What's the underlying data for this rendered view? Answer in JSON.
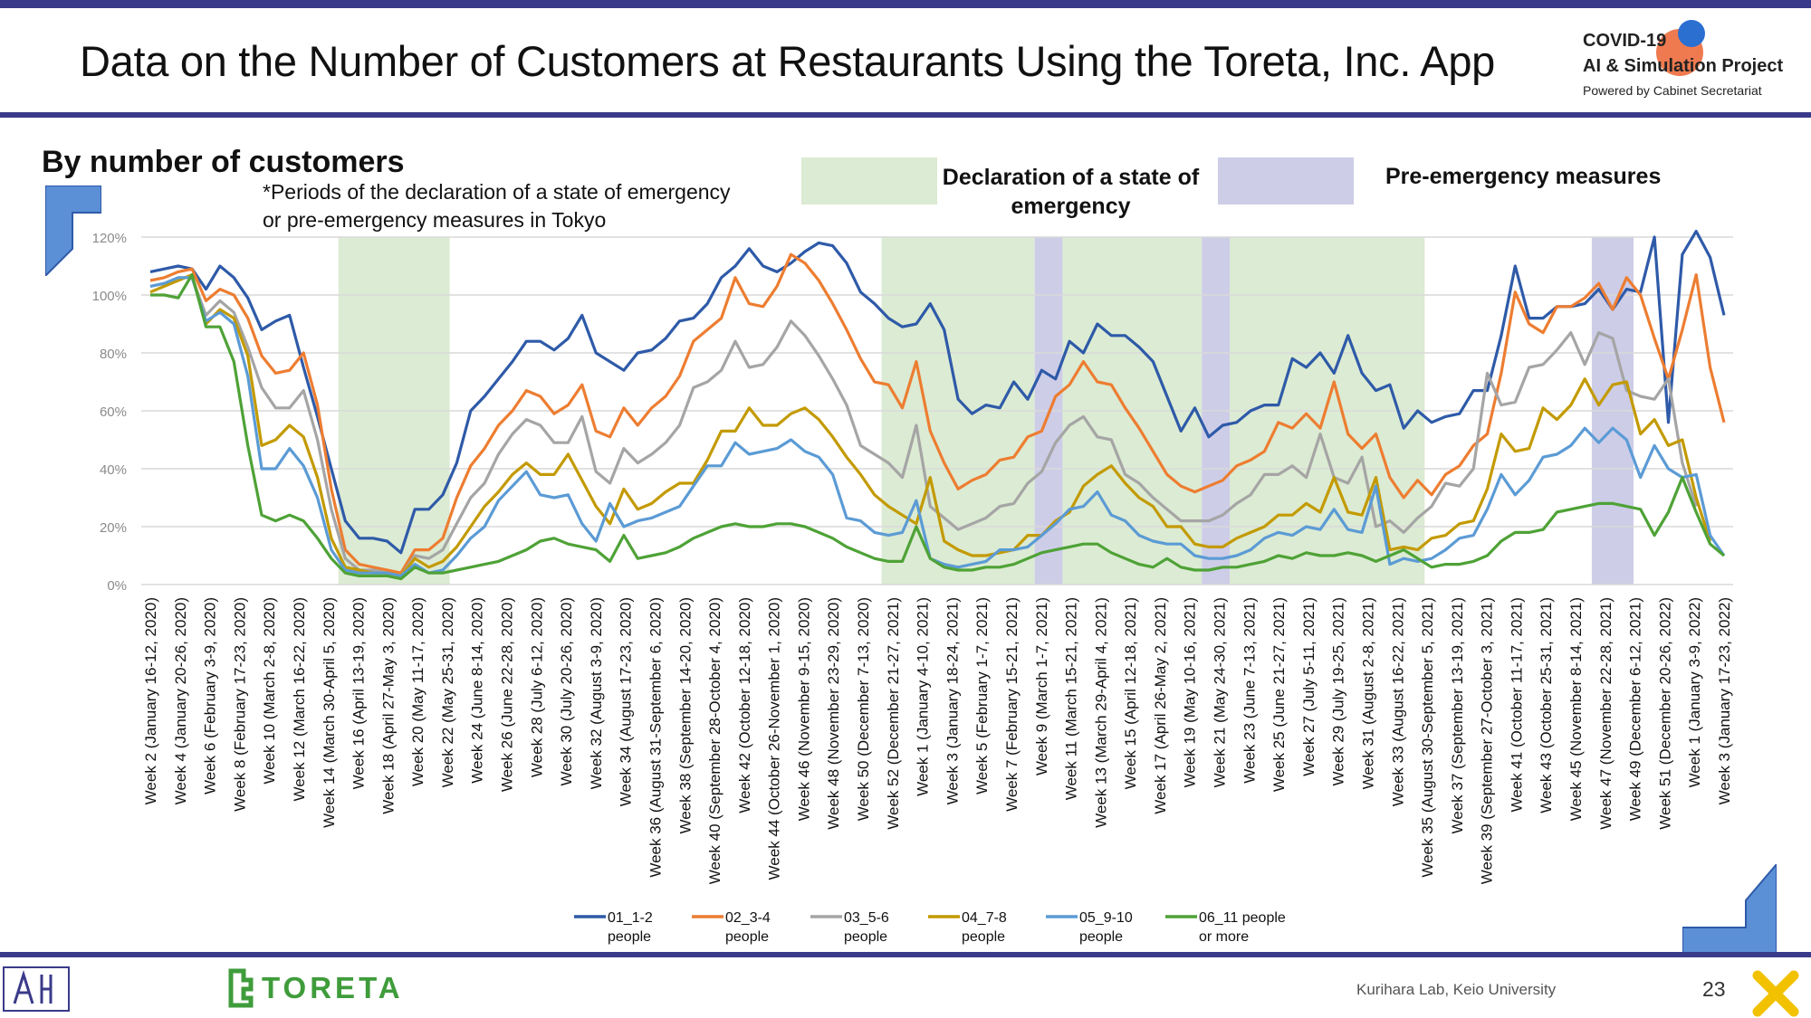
{
  "header": {
    "title": "Data on the Number of Customers at Restaurants Using the Toreta, Inc. App",
    "logo_line1": "COVID-19",
    "logo_line2": "AI & Simulation Project",
    "logo_line3": "Powered by Cabinet Secretariat"
  },
  "subtitle": "By number of customers",
  "note_line1": "*Periods of the declaration of a state of emergency",
  "note_line2": "or pre-emergency measures in Tokyo",
  "legend_top": {
    "emergency_label": "Declaration of a state of emergency",
    "pre_emergency_label": "Pre-emergency measures"
  },
  "footer": {
    "company_logo_text": "TORETA",
    "lab": "Kurihara Lab, Keio University",
    "page_number": "23"
  },
  "colors": {
    "frame": "#3a3a8a",
    "emergency_band": "#dcebd3",
    "pre_emergency_band": "#cdcde8",
    "series": [
      "#2e5aa8",
      "#ed7d31",
      "#a5a5a5",
      "#c39a00",
      "#5b9bd5",
      "#4ea236"
    ]
  },
  "chart_data": {
    "type": "line",
    "ylim": [
      0,
      120
    ],
    "y_unit": "%",
    "y_ticks": [
      "0%",
      "20%",
      "40%",
      "60%",
      "80%",
      "100%",
      "120%"
    ],
    "grid": "horizontal",
    "legend_position": "bottom",
    "x_labels": [
      "Week 2 (January 16-12, 2020)",
      "Week 4 (January 20-26, 2020)",
      "Week 6 (February 3-9, 2020)",
      "Week 8 (February 17-23, 2020)",
      "Week 10 (March 2-8, 2020)",
      "Week 12 (March 16-22, 2020)",
      "Week 14 (March 30-April 5, 2020)",
      "Week 16 (April 13-19, 2020)",
      "Week 18 (April 27-May 3, 2020)",
      "Week 20 (May 11-17, 2020)",
      "Week 22 (May 25-31, 2020)",
      "Week 24 (June 8-14, 2020)",
      "Week 26 (June 22-28, 2020)",
      "Week 28 (July 6-12, 2020)",
      "Week 30 (July 20-26, 2020)",
      "Week 32 (August 3-9, 2020)",
      "Week 34 (August 17-23, 2020)",
      "Week 36 (August 31-September 6, 2020)",
      "Week 38 (September 14-20, 2020)",
      "Week 40 (September 28-October 4, 2020)",
      "Week 42 (October 12-18, 2020)",
      "Week 44 (October 26-November 1, 2020)",
      "Week 46 (November 9-15, 2020)",
      "Week 48 (November 23-29, 2020)",
      "Week 50 (December 7-13, 2020)",
      "Week 52 (December 21-27, 2021)",
      "Week 1 (January 4-10, 2021)",
      "Week 3 (January 18-24, 2021)",
      "Week 5 (February 1-7, 2021)",
      "Week 7 (February 15-21, 2021)",
      "Week 9 (March 1-7, 2021)",
      "Week 11 (March 15-21, 2021)",
      "Week 13 (March 29-April 4, 2021)",
      "Week 15 (April 12-18, 2021)",
      "Week 17 (April 26-May 2, 2021)",
      "Week 19 (May 10-16, 2021)",
      "Week 21 (May 24-30, 2021)",
      "Week 23 (June 7-13, 2021)",
      "Week 25 (June 21-27, 2021)",
      "Week 27 (July 5-11, 2021)",
      "Week 29 (July 19-25, 2021)",
      "Week 31 (August 2-8, 2021)",
      "Week 33 (August 16-22, 2021)",
      "Week 35 (August 30-September 5, 2021)",
      "Week 37 (September 13-19, 2021)",
      "Week 39 (September 27-October 3, 2021)",
      "Week 41 (October 11-17, 2021)",
      "Week 43 (October 25-31, 2021)",
      "Week 45 (November 8-14, 2021)",
      "Week 47 (November 22-28, 2021)",
      "Week 49 (December 6-12, 2021)",
      "Week 51 (December 20-26, 2022)",
      "Week 1 (January 3-9, 2022)",
      "Week 3 (January 17-23, 2022)"
    ],
    "emergency_periods_weeks": [
      [
        14,
        21
      ],
      [
        53,
        63
      ],
      [
        66,
        75
      ],
      [
        78,
        91
      ]
    ],
    "pre_emergency_periods_weeks": [
      [
        64,
        65
      ],
      [
        76,
        77
      ],
      [
        104,
        106
      ]
    ],
    "series": [
      {
        "name": "01_1-2 people",
        "values": [
          108,
          109,
          110,
          109,
          102,
          110,
          106,
          99,
          88,
          91,
          93,
          75,
          58,
          40,
          22,
          16,
          16,
          15,
          11,
          26,
          26,
          31,
          42,
          60,
          65,
          71,
          77,
          84,
          84,
          81,
          85,
          93,
          80,
          77,
          74,
          80,
          81,
          85,
          91,
          92,
          97,
          106,
          110,
          116,
          110,
          108,
          111,
          115,
          118,
          117,
          111,
          101,
          97,
          92,
          89,
          90,
          97,
          88,
          64,
          59,
          62,
          61,
          70,
          64,
          74,
          71,
          84,
          80,
          90,
          86,
          86,
          82,
          77,
          65,
          53,
          61,
          51,
          55,
          56,
          60,
          62,
          62,
          78,
          75,
          80,
          73,
          86,
          73,
          67,
          69,
          54,
          60,
          56,
          58,
          59,
          67,
          67,
          86,
          110,
          92,
          92,
          96,
          96,
          97,
          102,
          95,
          102,
          101,
          120,
          56,
          114,
          122,
          113,
          93
        ]
      },
      {
        "name": "02_3-4 people",
        "values": [
          105,
          106,
          108,
          109,
          98,
          102,
          100,
          92,
          79,
          73,
          74,
          80,
          62,
          33,
          12,
          7,
          6,
          5,
          4,
          12,
          12,
          16,
          30,
          41,
          47,
          55,
          60,
          67,
          65,
          59,
          62,
          69,
          53,
          51,
          61,
          55,
          61,
          65,
          72,
          84,
          88,
          92,
          106,
          97,
          96,
          103,
          114,
          111,
          105,
          97,
          88,
          78,
          70,
          69,
          61,
          77,
          53,
          42,
          33,
          36,
          38,
          43,
          44,
          51,
          53,
          65,
          69,
          77,
          70,
          69,
          61,
          54,
          46,
          38,
          34,
          32,
          34,
          36,
          41,
          43,
          46,
          56,
          54,
          59,
          54,
          70,
          52,
          47,
          52,
          37,
          30,
          36,
          31,
          38,
          41,
          48,
          52,
          73,
          101,
          90,
          87,
          96,
          96,
          99,
          104,
          95,
          106,
          100,
          85,
          71,
          88,
          107,
          75,
          56
        ]
      },
      {
        "name": "03_5-6 people",
        "values": [
          103,
          104,
          106,
          106,
          93,
          98,
          94,
          82,
          68,
          61,
          61,
          67,
          50,
          26,
          9,
          5,
          5,
          4,
          3,
          10,
          9,
          12,
          21,
          30,
          35,
          45,
          52,
          57,
          55,
          49,
          49,
          58,
          39,
          35,
          47,
          42,
          45,
          49,
          55,
          68,
          70,
          74,
          84,
          75,
          76,
          82,
          91,
          86,
          79,
          71,
          62,
          48,
          45,
          42,
          37,
          55,
          27,
          23,
          19,
          21,
          23,
          27,
          28,
          35,
          39,
          49,
          55,
          58,
          51,
          50,
          38,
          35,
          30,
          26,
          22,
          22,
          22,
          24,
          28,
          31,
          38,
          38,
          41,
          37,
          52,
          37,
          35,
          44,
          20,
          22,
          18,
          23,
          27,
          35,
          34,
          40,
          73,
          62,
          63,
          75,
          76,
          81,
          87,
          76,
          87,
          85,
          67,
          65,
          64,
          71,
          42,
          27
        ]
      },
      {
        "name": "04_7-8 people",
        "values": [
          101,
          103,
          105,
          107,
          90,
          95,
          92,
          79,
          48,
          50,
          55,
          51,
          37,
          16,
          6,
          5,
          4,
          4,
          3,
          9,
          6,
          8,
          13,
          20,
          27,
          32,
          38,
          42,
          38,
          38,
          45,
          36,
          27,
          21,
          33,
          26,
          28,
          32,
          35,
          35,
          43,
          53,
          53,
          61,
          55,
          55,
          59,
          61,
          57,
          51,
          44,
          38,
          31,
          27,
          24,
          21,
          37,
          15,
          12,
          10,
          10,
          11,
          12,
          17,
          17,
          22,
          25,
          34,
          38,
          41,
          35,
          30,
          27,
          20,
          20,
          14,
          13,
          13,
          16,
          18,
          20,
          24,
          24,
          28,
          25,
          37,
          25,
          24,
          37,
          12,
          13,
          12,
          16,
          17,
          21,
          22,
          33,
          52,
          46,
          47,
          61,
          57,
          62,
          71,
          62,
          69,
          70,
          52,
          57,
          48,
          50,
          30,
          15
        ]
      },
      {
        "name": "05_9-10 people",
        "values": [
          103,
          104,
          106,
          106,
          91,
          94,
          90,
          72,
          40,
          40,
          47,
          41,
          30,
          12,
          5,
          4,
          4,
          4,
          3,
          7,
          4,
          5,
          10,
          16,
          20,
          29,
          34,
          39,
          31,
          30,
          31,
          21,
          15,
          28,
          20,
          22,
          23,
          25,
          27,
          34,
          41,
          41,
          49,
          45,
          46,
          47,
          50,
          46,
          44,
          38,
          23,
          22,
          18,
          17,
          18,
          29,
          9,
          7,
          6,
          7,
          8,
          12,
          12,
          13,
          17,
          21,
          26,
          27,
          32,
          24,
          22,
          17,
          15,
          14,
          14,
          10,
          9,
          9,
          10,
          12,
          16,
          18,
          17,
          20,
          19,
          26,
          19,
          18,
          34,
          7,
          9,
          8,
          9,
          12,
          16,
          17,
          26,
          38,
          31,
          36,
          44,
          45,
          48,
          54,
          49,
          54,
          50,
          37,
          48,
          40,
          37,
          38,
          17,
          10
        ]
      },
      {
        "name": "06_11 or more people",
        "values": [
          100,
          100,
          99,
          107,
          89,
          89,
          77,
          48,
          24,
          22,
          24,
          22,
          16,
          9,
          4,
          3,
          3,
          3,
          2,
          6,
          4,
          4,
          5,
          6,
          7,
          8,
          10,
          12,
          15,
          16,
          14,
          13,
          12,
          8,
          17,
          9,
          10,
          11,
          13,
          16,
          18,
          20,
          21,
          20,
          20,
          21,
          21,
          20,
          18,
          16,
          13,
          11,
          9,
          8,
          8,
          20,
          9,
          6,
          5,
          5,
          6,
          6,
          7,
          9,
          11,
          12,
          13,
          14,
          14,
          11,
          9,
          7,
          6,
          9,
          6,
          5,
          5,
          6,
          6,
          7,
          8,
          10,
          9,
          11,
          10,
          10,
          11,
          10,
          8,
          10,
          12,
          9,
          6,
          7,
          7,
          8,
          10,
          15,
          18,
          18,
          19,
          25,
          26,
          27,
          28,
          28,
          27,
          26,
          17,
          25,
          37,
          25,
          14,
          10
        ]
      }
    ]
  },
  "legend_bottom": [
    {
      "l1": "01_1-2",
      "l2": "people"
    },
    {
      "l1": "02_3-4",
      "l2": "people"
    },
    {
      "l1": "03_5-6",
      "l2": "people"
    },
    {
      "l1": "04_7-8",
      "l2": "people"
    },
    {
      "l1": "05_9-10",
      "l2": "people"
    },
    {
      "l1": "06_11 people",
      "l2": "or more"
    }
  ]
}
